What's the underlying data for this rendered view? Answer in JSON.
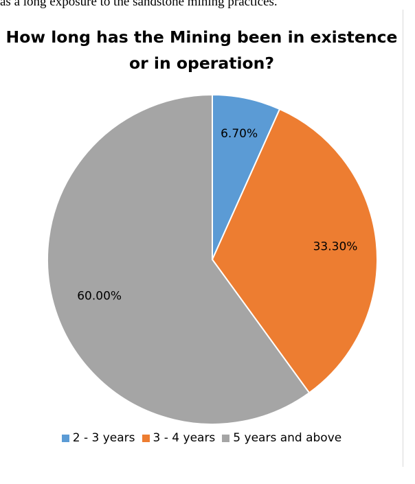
{
  "top_text": "as a long exposure to the sandstone mining practices.",
  "chart_data": {
    "type": "pie",
    "title": "How long has the Mining been in existence or in operation?",
    "categories": [
      "2 - 3 years",
      "3 - 4 years",
      "5 years and above"
    ],
    "values": [
      6.7,
      33.3,
      60.0
    ],
    "data_labels": [
      "6.70%",
      "33.30%",
      "60.00%"
    ],
    "colors": [
      "#5b9bd5",
      "#ed7d31",
      "#a5a5a5"
    ],
    "start_angle": "12 o'clock, clockwise",
    "legend": "bottom"
  }
}
